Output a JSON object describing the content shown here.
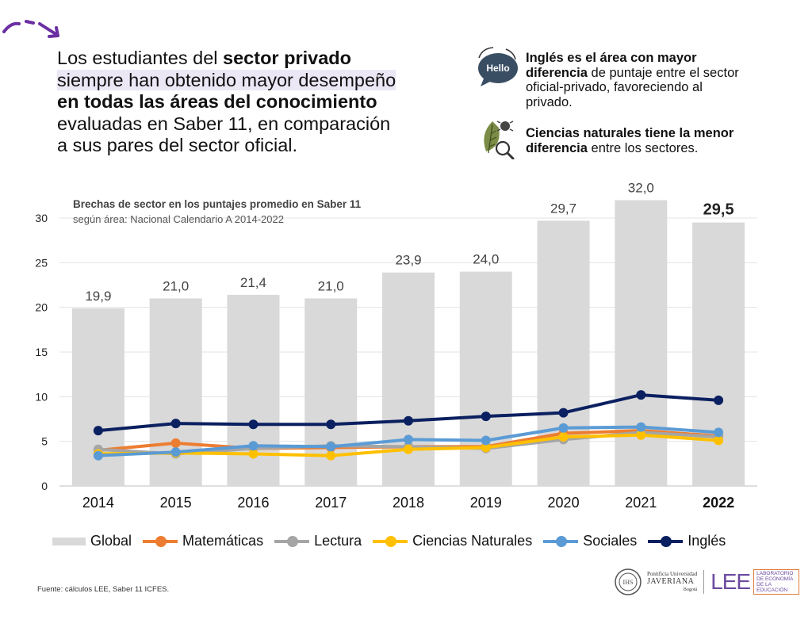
{
  "headline": {
    "p1": "Los estudiantes del ",
    "b1": "sector privado",
    "p2": "siempre han obtenido mayor desempeño",
    "b2": "en todas las áreas del conocimiento",
    "p3": "evaluadas en Saber 11, en comparación",
    "p4": "a sus pares del sector oficial."
  },
  "notes": {
    "hello_icon_text": "Hello",
    "n1_b1": "Inglés es el área con mayor",
    "n1_b2": "diferencia",
    "n1_p1": " de puntaje entre el sector",
    "n1_p2": "oficial-privado, favoreciendo al",
    "n1_p3": "privado.",
    "n2_b1": "Ciencias naturales tiene la menor",
    "n2_b2": "diferencia",
    "n2_p1": " entre los sectores."
  },
  "chart_data": {
    "type": "bar",
    "title": "Brechas de sector en los puntajes promedio en Saber 11",
    "subtitle": "según área: Nacional Calendario A 2014-2022",
    "categories": [
      "2014",
      "2015",
      "2016",
      "2017",
      "2018",
      "2019",
      "2020",
      "2021",
      "2022"
    ],
    "ylim": [
      0,
      30
    ],
    "yticks": [
      0,
      5,
      10,
      15,
      20,
      25,
      30
    ],
    "grid": true,
    "legend_position": "bottom",
    "bar_series": {
      "name": "Global",
      "color": "#d9d9d9",
      "values": [
        19.9,
        21.0,
        21.4,
        21.0,
        23.9,
        24.0,
        29.7,
        32.0,
        29.5
      ],
      "labels": [
        "19,9",
        "21,0",
        "21,4",
        "21,0",
        "23,9",
        "24,0",
        "29,7",
        "32,0",
        "29,5"
      ]
    },
    "series": [
      {
        "name": "Matemáticas",
        "color": "#ed7d31",
        "values": [
          4.0,
          4.8,
          4.2,
          4.3,
          4.4,
          4.4,
          5.9,
          6.2,
          5.6
        ]
      },
      {
        "name": "Lectura",
        "color": "#a5a5a5",
        "values": [
          4.1,
          3.6,
          4.2,
          4.5,
          4.4,
          4.2,
          5.2,
          6.0,
          5.5
        ]
      },
      {
        "name": "Ciencias Naturales",
        "color": "#ffc000",
        "values": [
          3.6,
          3.7,
          3.6,
          3.4,
          4.1,
          4.3,
          5.5,
          5.7,
          5.1
        ]
      },
      {
        "name": "Sociales",
        "color": "#5b9bd5",
        "values": [
          3.4,
          3.8,
          4.5,
          4.4,
          5.2,
          5.1,
          6.5,
          6.6,
          6.0
        ]
      },
      {
        "name": "Inglés",
        "color": "#0b2060",
        "values": [
          6.2,
          7.0,
          6.9,
          6.9,
          7.3,
          7.8,
          8.2,
          10.2,
          9.6
        ]
      }
    ]
  },
  "footer": {
    "source": "Fuente: cálculos LEE, Saber 11 ICFES.",
    "jav_line1": "Pontificia Universidad",
    "jav_line2": "JAVERIANA",
    "jav_line3": "Bogotá",
    "lee": "LEE",
    "lee_sub": "LABORATORIO DE ECONOMÍA DE LA EDUCACIÓN"
  }
}
